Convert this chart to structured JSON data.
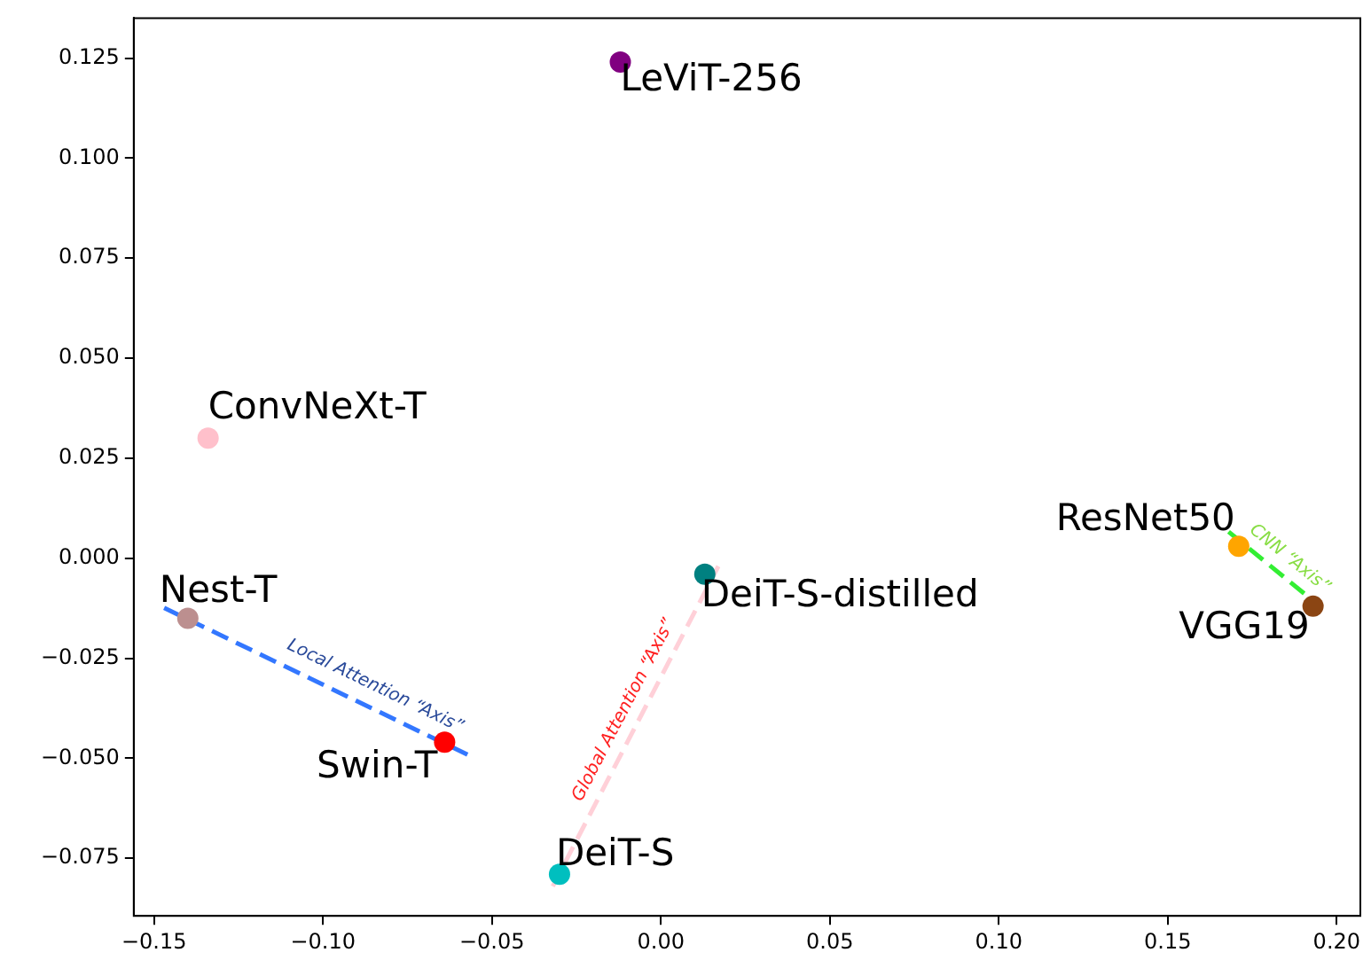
{
  "chart_data": {
    "type": "scatter",
    "marker": "circle",
    "grid": false,
    "legend": false,
    "xlim": [
      -0.156,
      0.207
    ],
    "ylim": [
      -0.0894,
      0.135
    ],
    "xticks": [
      {
        "value": -0.15,
        "label": "−0.15"
      },
      {
        "value": -0.1,
        "label": "−0.10"
      },
      {
        "value": -0.05,
        "label": "−0.05"
      },
      {
        "value": 0,
        "label": "0.00"
      },
      {
        "value": 0.05,
        "label": "0.05"
      },
      {
        "value": 0.1,
        "label": "0.10"
      },
      {
        "value": 0.15,
        "label": "0.15"
      },
      {
        "value": 0.2,
        "label": "0.20"
      }
    ],
    "yticks": [
      {
        "value": -0.075,
        "label": "−0.075"
      },
      {
        "value": -0.05,
        "label": "−0.050"
      },
      {
        "value": -0.025,
        "label": "−0.025"
      },
      {
        "value": 0,
        "label": "0.000"
      },
      {
        "value": 0.025,
        "label": "0.025"
      },
      {
        "value": 0.05,
        "label": "0.050"
      },
      {
        "value": 0.075,
        "label": "0.075"
      },
      {
        "value": 0.1,
        "label": "0.100"
      },
      {
        "value": 0.125,
        "label": "0.125"
      }
    ],
    "series": [
      {
        "name": "LeViT-256",
        "color": "#800080",
        "x": [
          -0.012
        ],
        "values": [
          0.124
        ]
      },
      {
        "name": "ConvNeXt-T",
        "color": "#ffc0cb",
        "x": [
          -0.134
        ],
        "values": [
          0.03
        ]
      },
      {
        "name": "Nest-T",
        "color": "#bc8f8f",
        "x": [
          -0.14
        ],
        "values": [
          -0.015
        ]
      },
      {
        "name": "Swin-T",
        "color": "#ff0000",
        "x": [
          -0.064
        ],
        "values": [
          -0.046
        ]
      },
      {
        "name": "DeiT-S",
        "color": "#00bfbf",
        "x": [
          -0.03
        ],
        "values": [
          -0.079
        ]
      },
      {
        "name": "DeiT-S-distilled",
        "color": "#008080",
        "x": [
          0.013
        ],
        "values": [
          -0.004
        ]
      },
      {
        "name": "ResNet50",
        "color": "#ffa500",
        "x": [
          0.171
        ],
        "values": [
          0.003
        ]
      },
      {
        "name": "VGG19",
        "color": "#8b4513",
        "x": [
          0.193
        ],
        "values": [
          -0.012
        ]
      },
      {
        "type": "line",
        "line_style": "dashed",
        "marker": "none",
        "color": "#3377ff",
        "x": [
          -0.147,
          -0.056
        ],
        "values": [
          -0.0124,
          -0.0496
        ]
      },
      {
        "type": "line",
        "line_style": "dashed",
        "marker": "none",
        "color": "#ffd0d8",
        "x": [
          -0.032,
          0.017
        ],
        "values": [
          -0.082,
          -0.002
        ]
      },
      {
        "type": "line",
        "line_style": "dashed",
        "marker": "none",
        "color": "#33ee33",
        "x": [
          0.168,
          0.195
        ],
        "values": [
          0.0066,
          -0.012
        ]
      }
    ],
    "annotations": [
      "Local Attention “Axis”",
      "Global Attention “Axis”",
      "CNN “Axis”"
    ]
  }
}
